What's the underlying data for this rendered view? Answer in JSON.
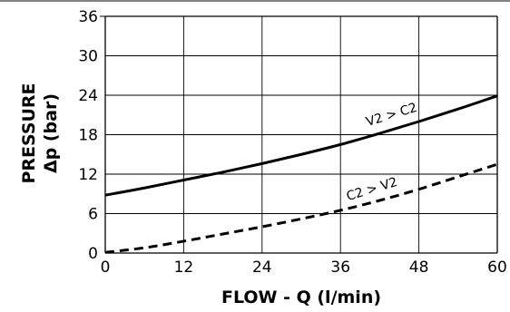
{
  "chart_data": {
    "type": "line",
    "title": "",
    "xlabel": "FLOW - Q (l/min)",
    "ylabel": [
      "PRESSURE",
      "Δp (bar)"
    ],
    "xlim": [
      0,
      60
    ],
    "ylim": [
      0,
      36
    ],
    "x_ticks": [
      "0",
      "12",
      "24",
      "36",
      "48",
      "60"
    ],
    "y_ticks": [
      "0",
      "6",
      "12",
      "18",
      "24",
      "30",
      "36"
    ],
    "grid": true,
    "series": [
      {
        "name": "V2 > C2",
        "line_style": "solid",
        "color": "#000000",
        "x": [
          0,
          6,
          12,
          18,
          24,
          30,
          36,
          42,
          48,
          54,
          60
        ],
        "y": [
          8.8,
          9.9,
          11.1,
          12.3,
          13.6,
          15.0,
          16.5,
          18.2,
          20.0,
          21.9,
          23.9
        ]
      },
      {
        "name": "C2 > V2",
        "line_style": "dashed",
        "color": "#000000",
        "x": [
          0,
          6,
          12,
          18,
          24,
          30,
          36,
          42,
          48,
          54,
          60
        ],
        "y": [
          0.1,
          0.8,
          1.8,
          2.9,
          4.0,
          5.2,
          6.5,
          8.0,
          9.7,
          11.6,
          13.5
        ]
      }
    ]
  }
}
